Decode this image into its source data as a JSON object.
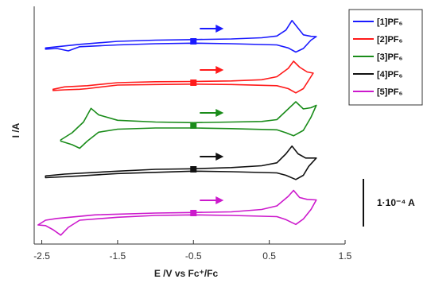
{
  "chart_data": {
    "type": "line",
    "title": "",
    "xlabel": "E /V vs Fc⁺/Fc",
    "ylabel": "I /A",
    "xlim": [
      -2.6,
      1.5
    ],
    "x_ticks": [
      "-2.5",
      "-1.5",
      "-0.5",
      "0.5",
      "1.5"
    ],
    "x_tick_values": [
      -2.5,
      -1.5,
      -0.5,
      0.5,
      1.5
    ],
    "y_ticks": [],
    "legend_placement": "top-right",
    "scale_bar_label": "1·10⁻⁴ A",
    "start_potential": -0.5,
    "scan_direction": "positive",
    "series": [
      {
        "name": "[1]PF₆",
        "color": "#1a1aff",
        "upper": [
          [
            -2.45,
            -0.55
          ],
          [
            -2.3,
            -0.45
          ],
          [
            -2.0,
            -0.25
          ],
          [
            -1.5,
            0.0
          ],
          [
            -1.0,
            0.1
          ],
          [
            -0.5,
            0.15
          ],
          [
            0.0,
            0.2
          ],
          [
            0.4,
            0.3
          ],
          [
            0.6,
            0.45
          ],
          [
            0.72,
            0.95
          ],
          [
            0.8,
            1.75
          ],
          [
            0.88,
            1.1
          ],
          [
            0.95,
            0.55
          ],
          [
            1.05,
            0.42
          ],
          [
            1.12,
            0.4
          ]
        ],
        "lower": [
          [
            1.12,
            0.4
          ],
          [
            1.05,
            0.1
          ],
          [
            0.95,
            -0.6
          ],
          [
            0.85,
            -0.9
          ],
          [
            0.75,
            -0.55
          ],
          [
            0.6,
            -0.3
          ],
          [
            0.0,
            -0.2
          ],
          [
            -0.5,
            -0.15
          ],
          [
            -1.0,
            -0.2
          ],
          [
            -1.5,
            -0.3
          ],
          [
            -2.0,
            -0.45
          ],
          [
            -2.15,
            -0.8
          ],
          [
            -2.3,
            -0.6
          ],
          [
            -2.45,
            -0.65
          ]
        ]
      },
      {
        "name": "[2]PF₆",
        "color": "#ff1a1a",
        "upper": [
          [
            -2.35,
            -0.55
          ],
          [
            -2.2,
            -0.35
          ],
          [
            -1.9,
            -0.25
          ],
          [
            -1.5,
            0.0
          ],
          [
            -1.0,
            0.08
          ],
          [
            -0.5,
            0.1
          ],
          [
            0.0,
            0.15
          ],
          [
            0.4,
            0.25
          ],
          [
            0.6,
            0.5
          ],
          [
            0.75,
            1.2
          ],
          [
            0.82,
            1.8
          ],
          [
            0.9,
            1.3
          ],
          [
            1.0,
            0.9
          ],
          [
            1.08,
            0.8
          ]
        ],
        "lower": [
          [
            1.08,
            0.8
          ],
          [
            1.02,
            0.2
          ],
          [
            0.95,
            -0.5
          ],
          [
            0.85,
            -0.85
          ],
          [
            0.75,
            -0.5
          ],
          [
            0.6,
            -0.25
          ],
          [
            0.0,
            -0.15
          ],
          [
            -0.5,
            -0.12
          ],
          [
            -1.0,
            -0.15
          ],
          [
            -1.5,
            -0.2
          ],
          [
            -1.9,
            -0.5
          ],
          [
            -2.0,
            -0.55
          ],
          [
            -2.2,
            -0.6
          ],
          [
            -2.35,
            -0.65
          ]
        ]
      },
      {
        "name": "[3]PF₆",
        "color": "#1a8c1a",
        "upper": [
          [
            -2.25,
            -1.2
          ],
          [
            -2.1,
            -0.6
          ],
          [
            -1.95,
            0.3
          ],
          [
            -1.85,
            1.45
          ],
          [
            -1.75,
            0.9
          ],
          [
            -1.5,
            0.45
          ],
          [
            -1.0,
            0.3
          ],
          [
            -0.5,
            0.25
          ],
          [
            0.0,
            0.3
          ],
          [
            0.4,
            0.35
          ],
          [
            0.6,
            0.5
          ],
          [
            0.75,
            1.4
          ],
          [
            0.85,
            2.0
          ],
          [
            0.95,
            1.4
          ],
          [
            1.05,
            1.5
          ],
          [
            1.12,
            1.7
          ]
        ],
        "lower": [
          [
            1.12,
            1.7
          ],
          [
            1.05,
            0.7
          ],
          [
            0.95,
            -0.4
          ],
          [
            0.82,
            -0.85
          ],
          [
            0.72,
            -0.6
          ],
          [
            0.6,
            -0.35
          ],
          [
            0.0,
            -0.25
          ],
          [
            -0.5,
            -0.2
          ],
          [
            -1.0,
            -0.2
          ],
          [
            -1.5,
            -0.3
          ],
          [
            -1.75,
            -0.55
          ],
          [
            -1.9,
            -1.3
          ],
          [
            -2.0,
            -1.9
          ],
          [
            -2.1,
            -1.6
          ],
          [
            -2.25,
            -1.3
          ]
        ]
      },
      {
        "name": "[4]PF₆",
        "color": "#111111",
        "upper": [
          [
            -2.45,
            -0.55
          ],
          [
            -2.2,
            -0.4
          ],
          [
            -1.5,
            -0.15
          ],
          [
            -1.0,
            0.0
          ],
          [
            -0.5,
            0.05
          ],
          [
            0.0,
            0.15
          ],
          [
            0.4,
            0.3
          ],
          [
            0.6,
            0.55
          ],
          [
            0.72,
            1.3
          ],
          [
            0.8,
            1.95
          ],
          [
            0.88,
            1.3
          ],
          [
            0.98,
            0.95
          ],
          [
            1.12,
            0.95
          ]
        ],
        "lower": [
          [
            1.12,
            0.95
          ],
          [
            1.02,
            0.25
          ],
          [
            0.95,
            -0.5
          ],
          [
            0.85,
            -0.85
          ],
          [
            0.72,
            -0.5
          ],
          [
            0.6,
            -0.3
          ],
          [
            0.0,
            -0.2
          ],
          [
            -0.5,
            -0.15
          ],
          [
            -1.0,
            -0.25
          ],
          [
            -1.5,
            -0.35
          ],
          [
            -2.0,
            -0.55
          ],
          [
            -2.45,
            -0.7
          ]
        ]
      },
      {
        "name": "[5]PF₆",
        "color": "#cc19cc",
        "upper": [
          [
            -2.55,
            -1.0
          ],
          [
            -2.45,
            -0.6
          ],
          [
            -2.3,
            -0.45
          ],
          [
            -1.8,
            -0.15
          ],
          [
            -1.0,
            0.0
          ],
          [
            -0.5,
            0.05
          ],
          [
            0.0,
            0.1
          ],
          [
            0.4,
            0.3
          ],
          [
            0.6,
            0.6
          ],
          [
            0.75,
            1.4
          ],
          [
            0.82,
            1.9
          ],
          [
            0.9,
            1.3
          ],
          [
            1.0,
            1.15
          ],
          [
            1.12,
            1.1
          ]
        ],
        "lower": [
          [
            1.12,
            1.1
          ],
          [
            1.05,
            0.3
          ],
          [
            0.95,
            -0.5
          ],
          [
            0.85,
            -0.95
          ],
          [
            0.72,
            -0.55
          ],
          [
            0.6,
            -0.3
          ],
          [
            0.0,
            -0.2
          ],
          [
            -0.5,
            -0.15
          ],
          [
            -1.0,
            -0.2
          ],
          [
            -1.5,
            -0.35
          ],
          [
            -2.0,
            -0.6
          ],
          [
            -2.15,
            -1.2
          ],
          [
            -2.25,
            -1.85
          ],
          [
            -2.35,
            -1.4
          ],
          [
            -2.45,
            -1.05
          ],
          [
            -2.55,
            -1.0
          ]
        ]
      }
    ]
  }
}
